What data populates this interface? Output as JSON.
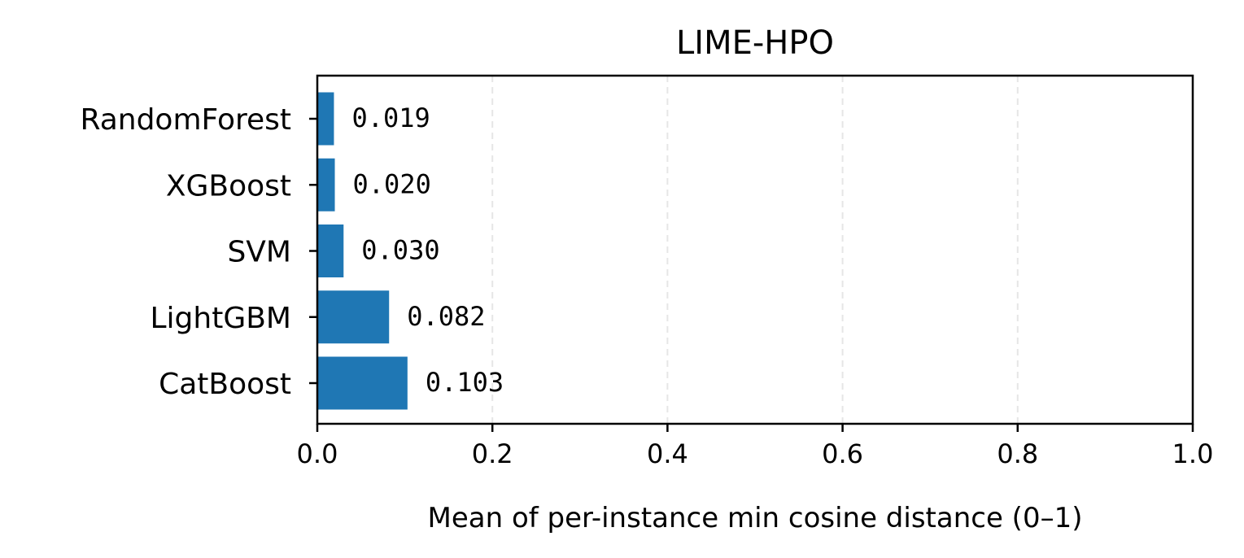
{
  "chart_data": {
    "type": "bar",
    "orientation": "horizontal",
    "title": "LIME-HPO",
    "xlabel": "Mean of per-instance min cosine distance (0–1)",
    "ylabel": "",
    "xlim": [
      0,
      1
    ],
    "x_ticks": [
      "0.0",
      "0.2",
      "0.4",
      "0.6",
      "0.8",
      "1.0"
    ],
    "x_tick_values": [
      0,
      0.2,
      0.4,
      0.6,
      0.8,
      1.0
    ],
    "grid": "x-dashed",
    "bar_color": "#1f77b4",
    "categories": [
      "RandomForest",
      "XGBoost",
      "SVM",
      "LightGBM",
      "CatBoost"
    ],
    "values": [
      0.019,
      0.02,
      0.03,
      0.082,
      0.103
    ],
    "data_labels": [
      "0.019",
      "0.020",
      "0.030",
      "0.082",
      "0.103"
    ]
  }
}
